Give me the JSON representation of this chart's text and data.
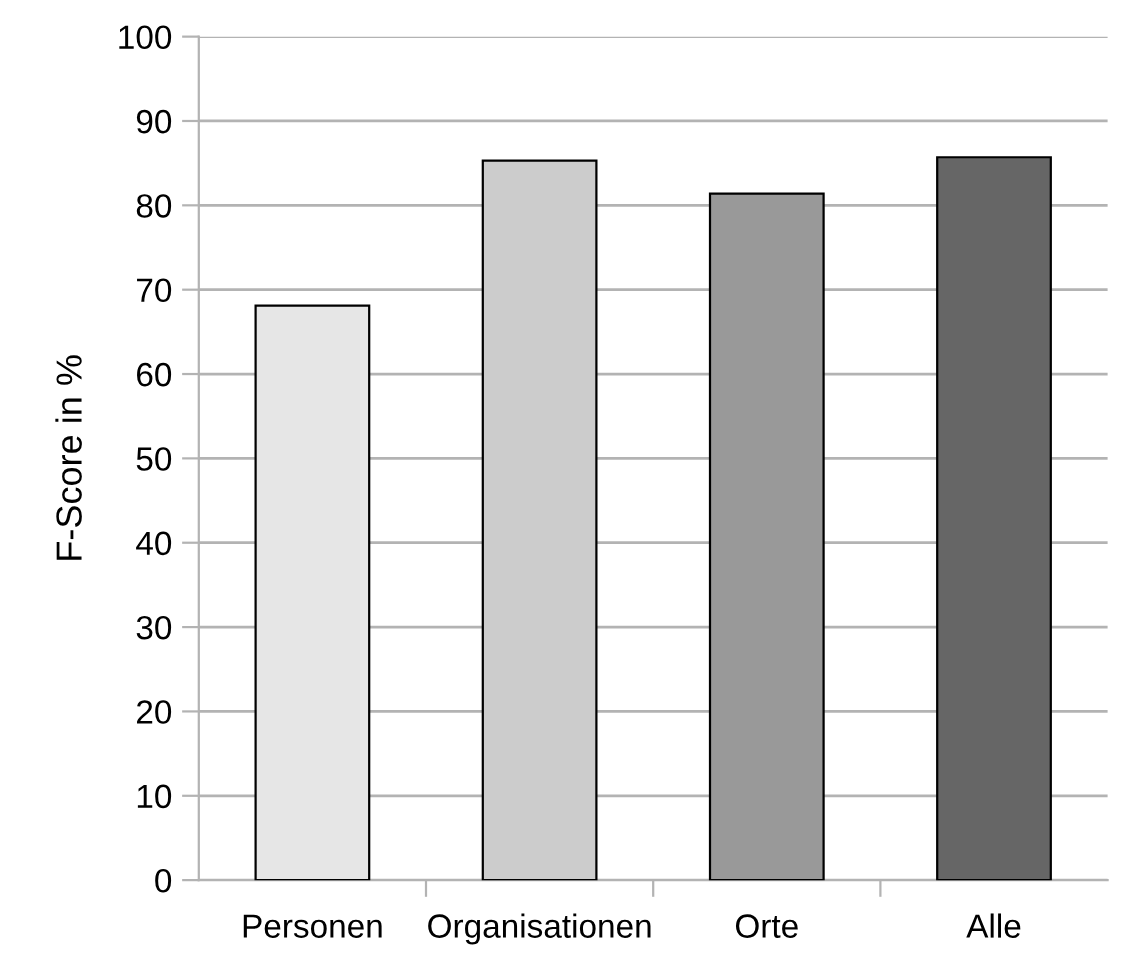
{
  "chart_data": {
    "type": "bar",
    "ylabel": "F-Score in %",
    "categories": [
      "Personen",
      "Organisationen",
      "Orte",
      "Alle"
    ],
    "values": [
      68.1,
      85.3,
      81.4,
      85.7
    ],
    "colors": [
      "#e6e6e6",
      "#cccccc",
      "#999999",
      "#666666"
    ],
    "ylim": [
      0,
      100
    ],
    "yticks": [
      0,
      10,
      20,
      30,
      40,
      50,
      60,
      70,
      80,
      90,
      100
    ],
    "grid": "y"
  }
}
